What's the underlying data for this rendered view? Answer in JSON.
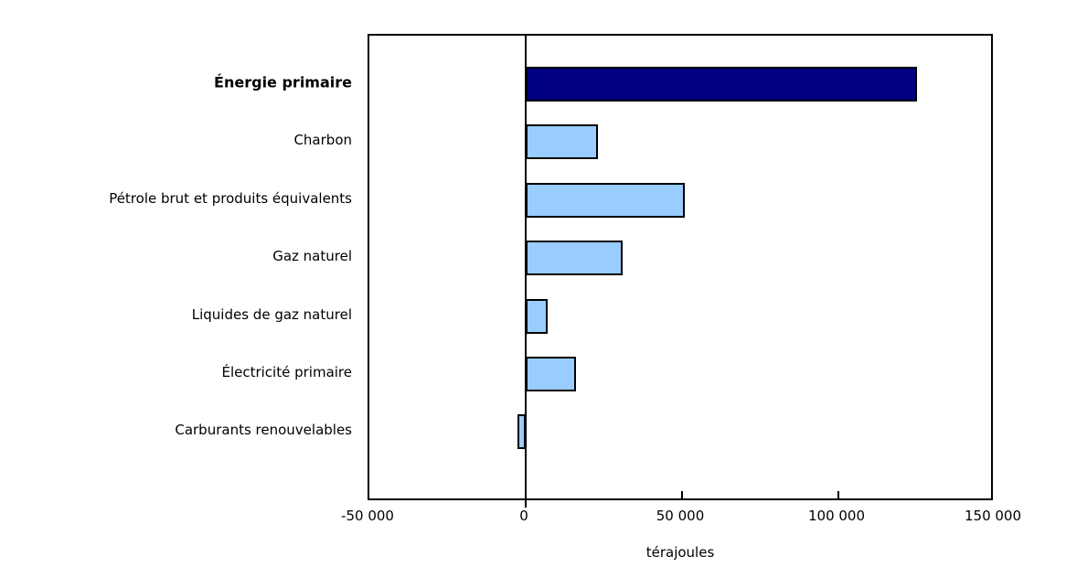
{
  "chart_data": {
    "type": "bar",
    "orientation": "horizontal",
    "title": "",
    "categories": [
      "Énergie primaire",
      "Charbon",
      "Pétrole brut et produits équivalents",
      "Gaz naturel",
      "Liquides de gaz naturel",
      "Électricité primaire",
      "Carburants renouvelables"
    ],
    "values": [
      125000,
      23000,
      51000,
      31000,
      7000,
      16000,
      -2600
    ],
    "bar_colors": [
      "#000080",
      "#99ccff",
      "#99ccff",
      "#99ccff",
      "#99ccff",
      "#99ccff",
      "#99ccff"
    ],
    "bar_border_color": "#000000",
    "emphasized_category_index": 0,
    "xlabel": "térajoules",
    "ylabel": "",
    "xlim": [
      -50000,
      150000
    ],
    "xticks": [
      {
        "value": -50000,
        "label": "-50 000"
      },
      {
        "value": 0,
        "label": "0"
      },
      {
        "value": 50000,
        "label": "50 000"
      },
      {
        "value": 100000,
        "label": "100 000"
      },
      {
        "value": 150000,
        "label": "150 000"
      }
    ],
    "grid": false,
    "legend": null,
    "background": "#ffffff",
    "zero_baseline": true
  }
}
